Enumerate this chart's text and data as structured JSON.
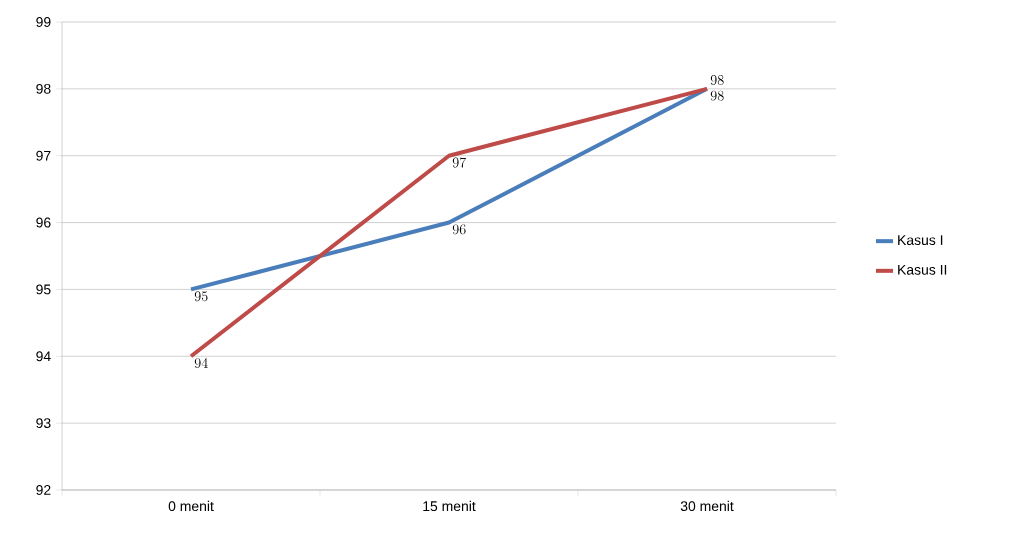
{
  "chart_data": {
    "type": "line",
    "categories": [
      "0 menit",
      "15 menit",
      "30 menit"
    ],
    "series": [
      {
        "name": "Kasus I",
        "color": "#4a7ebb",
        "values": [
          95,
          96,
          98
        ]
      },
      {
        "name": "Kasus II",
        "color": "#be4b48",
        "values": [
          94,
          97,
          98
        ]
      }
    ],
    "ylim": [
      92,
      99
    ],
    "yticks": [
      92,
      93,
      94,
      95,
      96,
      97,
      98,
      99
    ],
    "grid": "y",
    "legend": "right",
    "data_labels": true,
    "marker": "none",
    "line_style": "solid"
  }
}
